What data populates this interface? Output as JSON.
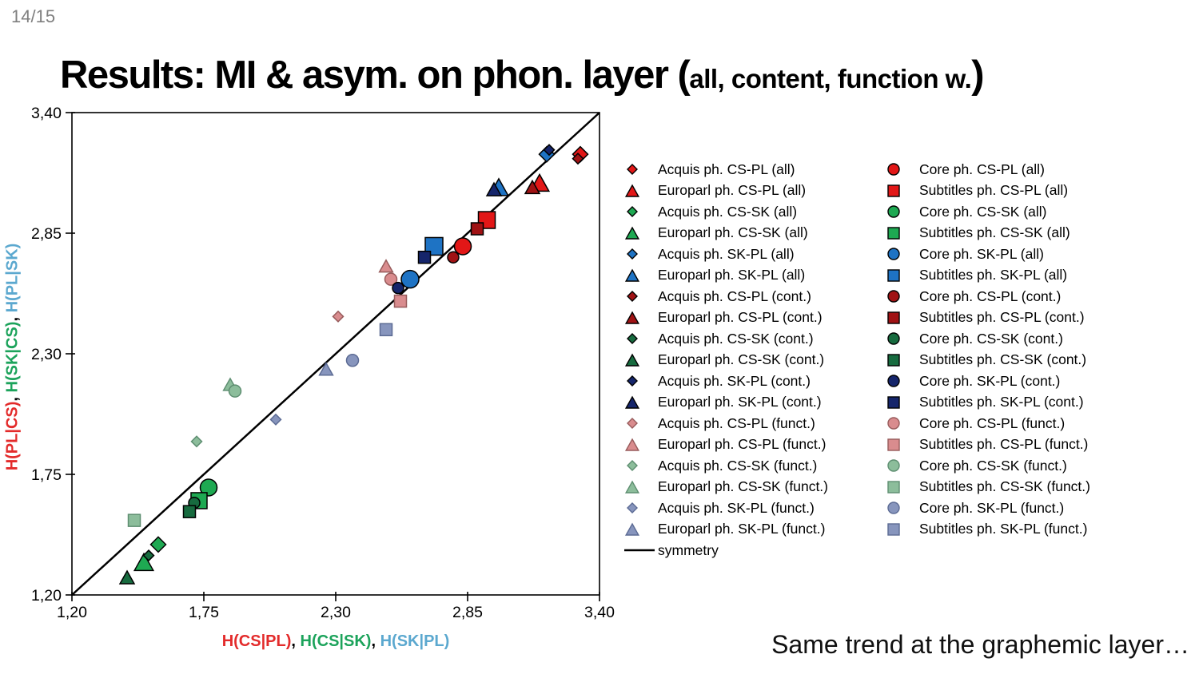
{
  "slide": {
    "page_number": "14/15",
    "title": {
      "main": "Results: MI & asym. on phon. layer ",
      "paren_open": "(",
      "paren_note": "all, content, function w.",
      "paren_close": ")"
    },
    "footer_note": "Same trend at the graphemic layer…"
  },
  "chart_data": {
    "type": "scatter",
    "grid": false,
    "legend_position": "right",
    "frame_color": "#000000",
    "x_axis": {
      "range": [
        1.2,
        3.4
      ],
      "tick_values": [
        1.2,
        1.75,
        2.3,
        2.85,
        3.4
      ],
      "tick_labels": [
        "1,20",
        "1,75",
        "2,30",
        "2,85",
        "3,40"
      ],
      "label_segments": [
        {
          "text": "H(CS|PL)",
          "color": "#E32B2B"
        },
        {
          "text": ", ",
          "color": "#000000"
        },
        {
          "text": "H(CS|SK)",
          "color": "#1CA35B"
        },
        {
          "text": ", ",
          "color": "#000000"
        },
        {
          "text": "H(SK|PL)",
          "color": "#5BA8CF"
        }
      ]
    },
    "y_axis": {
      "range": [
        1.2,
        3.4
      ],
      "tick_values": [
        1.2,
        1.75,
        2.3,
        2.85,
        3.4
      ],
      "tick_labels": [
        "1,20",
        "1,75",
        "2,30",
        "2,85",
        "3,40"
      ],
      "label_segments": [
        {
          "text": "H(PL|CS)",
          "color": "#E32B2B"
        },
        {
          "text": ", ",
          "color": "#000000"
        },
        {
          "text": "H(SK|CS)",
          "color": "#1CA35B"
        },
        {
          "text": ", ",
          "color": "#000000"
        },
        {
          "text": "H(PL|SK)",
          "color": "#5BA8CF"
        }
      ]
    },
    "symmetry_line": {
      "label": "symmetry",
      "from": [
        1.2,
        1.2
      ],
      "to": [
        3.4,
        3.4
      ],
      "color": "#000000",
      "width": 2.5
    },
    "series": [
      {
        "label": "Acquis ph. CS-PL (all)",
        "shape": "diamond",
        "fill": "#E21717",
        "stroke": "#000000",
        "size": 19,
        "x": 3.32,
        "y": 3.21,
        "legend_column": 0,
        "group": "all"
      },
      {
        "label": "Europarl ph. CS-PL (all)",
        "shape": "triangle",
        "fill": "#E21717",
        "stroke": "#000000",
        "size": 21,
        "x": 3.15,
        "y": 3.08,
        "legend_column": 0,
        "group": "all"
      },
      {
        "label": "Acquis ph. CS-SK (all)",
        "shape": "diamond",
        "fill": "#1EA952",
        "stroke": "#000000",
        "size": 19,
        "x": 1.56,
        "y": 1.43,
        "legend_column": 0,
        "group": "all"
      },
      {
        "label": "Europarl ph. CS-SK (all)",
        "shape": "triangle",
        "fill": "#1EA952",
        "stroke": "#000000",
        "size": 21,
        "x": 1.5,
        "y": 1.35,
        "legend_column": 0,
        "group": "all"
      },
      {
        "label": "Acquis ph. SK-PL (all)",
        "shape": "diamond",
        "fill": "#1E73C4",
        "stroke": "#000000",
        "size": 19,
        "x": 3.18,
        "y": 3.21,
        "legend_column": 0,
        "group": "all"
      },
      {
        "label": "Europarl ph. SK-PL (all)",
        "shape": "triangle",
        "fill": "#1E73C4",
        "stroke": "#000000",
        "size": 21,
        "x": 2.98,
        "y": 3.06,
        "legend_column": 0,
        "group": "all"
      },
      {
        "label": "Acquis ph. CS-PL (cont.)",
        "shape": "diamond",
        "fill": "#A01214",
        "stroke": "#000000",
        "size": 13,
        "x": 3.31,
        "y": 3.19,
        "legend_column": 0,
        "group": "cont."
      },
      {
        "label": "Europarl ph. CS-PL (cont.)",
        "shape": "triangle",
        "fill": "#A01214",
        "stroke": "#000000",
        "size": 16,
        "x": 3.12,
        "y": 3.06,
        "legend_column": 0,
        "group": "cont."
      },
      {
        "label": "Acquis ph. CS-SK (cont.)",
        "shape": "diamond",
        "fill": "#176B3F",
        "stroke": "#000000",
        "size": 13,
        "x": 1.52,
        "y": 1.38,
        "legend_column": 0,
        "group": "cont."
      },
      {
        "label": "Europarl ph. CS-SK (cont.)",
        "shape": "triangle",
        "fill": "#176B3F",
        "stroke": "#000000",
        "size": 16,
        "x": 1.43,
        "y": 1.28,
        "legend_column": 0,
        "group": "cont."
      },
      {
        "label": "Acquis ph. SK-PL (cont.)",
        "shape": "diamond",
        "fill": "#15256B",
        "stroke": "#000000",
        "size": 13,
        "x": 3.19,
        "y": 3.23,
        "legend_column": 0,
        "group": "cont."
      },
      {
        "label": "Europarl ph. SK-PL (cont.)",
        "shape": "triangle",
        "fill": "#15256B",
        "stroke": "#000000",
        "size": 16,
        "x": 2.96,
        "y": 3.05,
        "legend_column": 0,
        "group": "cont."
      },
      {
        "label": "Acquis ph. CS-PL (funct.)",
        "shape": "diamond",
        "fill": "#D98C8E",
        "stroke": "#975B5B",
        "size": 13,
        "x": 2.31,
        "y": 2.47,
        "legend_column": 0,
        "group": "funct."
      },
      {
        "label": "Europarl ph. CS-PL (funct.)",
        "shape": "triangle",
        "fill": "#D98C8E",
        "stroke": "#975B5B",
        "size": 15,
        "x": 2.51,
        "y": 2.7,
        "legend_column": 0,
        "group": "funct."
      },
      {
        "label": "Acquis ph. CS-SK (funct.)",
        "shape": "diamond",
        "fill": "#8CBD9B",
        "stroke": "#5E8E71",
        "size": 13,
        "x": 1.72,
        "y": 1.9,
        "legend_column": 0,
        "group": "funct."
      },
      {
        "label": "Europarl ph. CS-SK (funct.)",
        "shape": "triangle",
        "fill": "#8CBD9B",
        "stroke": "#5E8E71",
        "size": 15,
        "x": 1.86,
        "y": 2.16,
        "legend_column": 0,
        "group": "funct."
      },
      {
        "label": "Acquis ph. SK-PL (funct.)",
        "shape": "diamond",
        "fill": "#8795BD",
        "stroke": "#5C6B94",
        "size": 13,
        "x": 2.05,
        "y": 2.0,
        "legend_column": 0,
        "group": "funct."
      },
      {
        "label": "Europarl ph. SK-PL (funct.)",
        "shape": "triangle",
        "fill": "#8795BD",
        "stroke": "#5C6B94",
        "size": 15,
        "x": 2.26,
        "y": 2.23,
        "legend_column": 0,
        "group": "funct."
      },
      {
        "label": "Core ph. CS-PL (all)",
        "shape": "circle",
        "fill": "#E21717",
        "stroke": "#000000",
        "size": 21,
        "x": 2.83,
        "y": 2.79,
        "legend_column": 1,
        "group": "all"
      },
      {
        "label": "Subtitles ph. CS-PL (all)",
        "shape": "square",
        "fill": "#E21717",
        "stroke": "#000000",
        "size": 21,
        "x": 2.93,
        "y": 2.91,
        "legend_column": 1,
        "group": "all"
      },
      {
        "label": "Core ph. CS-SK (all)",
        "shape": "circle",
        "fill": "#1EA952",
        "stroke": "#000000",
        "size": 21,
        "x": 1.77,
        "y": 1.69,
        "legend_column": 1,
        "group": "all"
      },
      {
        "label": "Subtitles ph. CS-SK (all)",
        "shape": "square",
        "fill": "#1EA952",
        "stroke": "#000000",
        "size": 20,
        "x": 1.73,
        "y": 1.63,
        "legend_column": 1,
        "group": "all"
      },
      {
        "label": "Core ph. SK-PL (all)",
        "shape": "circle",
        "fill": "#1E73C4",
        "stroke": "#000000",
        "size": 22,
        "x": 2.61,
        "y": 2.64,
        "legend_column": 1,
        "group": "all"
      },
      {
        "label": "Subtitles ph. SK-PL (all)",
        "shape": "square",
        "fill": "#1E73C4",
        "stroke": "#000000",
        "size": 22,
        "x": 2.71,
        "y": 2.79,
        "legend_column": 1,
        "group": "all"
      },
      {
        "label": "Core ph. CS-PL (cont.)",
        "shape": "circle",
        "fill": "#A01214",
        "stroke": "#000000",
        "size": 14,
        "x": 2.79,
        "y": 2.74,
        "legend_column": 1,
        "group": "cont."
      },
      {
        "label": "Subtitles ph. CS-PL (cont.)",
        "shape": "square",
        "fill": "#A01214",
        "stroke": "#000000",
        "size": 15,
        "x": 2.89,
        "y": 2.87,
        "legend_column": 1,
        "group": "cont."
      },
      {
        "label": "Core ph. CS-SK (cont.)",
        "shape": "circle",
        "fill": "#176B3F",
        "stroke": "#000000",
        "size": 14,
        "x": 1.71,
        "y": 1.62,
        "legend_column": 1,
        "group": "cont."
      },
      {
        "label": "Subtitles ph. CS-SK (cont.)",
        "shape": "square",
        "fill": "#176B3F",
        "stroke": "#000000",
        "size": 15,
        "x": 1.69,
        "y": 1.58,
        "legend_column": 1,
        "group": "cont."
      },
      {
        "label": "Core ph. SK-PL (cont.)",
        "shape": "circle",
        "fill": "#15256B",
        "stroke": "#000000",
        "size": 14,
        "x": 2.56,
        "y": 2.6,
        "legend_column": 1,
        "group": "cont."
      },
      {
        "label": "Subtitles ph. SK-PL (cont.)",
        "shape": "square",
        "fill": "#15256B",
        "stroke": "#000000",
        "size": 15,
        "x": 2.67,
        "y": 2.74,
        "legend_column": 1,
        "group": "cont."
      },
      {
        "label": "Core ph. CS-PL (funct.)",
        "shape": "circle",
        "fill": "#D98C8E",
        "stroke": "#975B5B",
        "size": 15,
        "x": 2.53,
        "y": 2.64,
        "legend_column": 1,
        "group": "funct."
      },
      {
        "label": "Subtitles ph. CS-PL (funct.)",
        "shape": "square",
        "fill": "#D98C8E",
        "stroke": "#975B5B",
        "size": 15,
        "x": 2.57,
        "y": 2.54,
        "legend_column": 1,
        "group": "funct."
      },
      {
        "label": "Core ph. CS-SK (funct.)",
        "shape": "circle",
        "fill": "#8CBD9B",
        "stroke": "#5E8E71",
        "size": 15,
        "x": 1.88,
        "y": 2.13,
        "legend_column": 1,
        "group": "funct."
      },
      {
        "label": "Subtitles ph. CS-SK (funct.)",
        "shape": "square",
        "fill": "#8CBD9B",
        "stroke": "#5E8E71",
        "size": 15,
        "x": 1.46,
        "y": 1.54,
        "legend_column": 1,
        "group": "funct."
      },
      {
        "label": "Core ph. SK-PL (funct.)",
        "shape": "circle",
        "fill": "#8795BD",
        "stroke": "#5C6B94",
        "size": 15,
        "x": 2.37,
        "y": 2.27,
        "legend_column": 1,
        "group": "funct."
      },
      {
        "label": "Subtitles ph. SK-PL (funct.)",
        "shape": "square",
        "fill": "#8795BD",
        "stroke": "#5C6B94",
        "size": 15,
        "x": 2.51,
        "y": 2.41,
        "legend_column": 1,
        "group": "funct."
      }
    ]
  }
}
